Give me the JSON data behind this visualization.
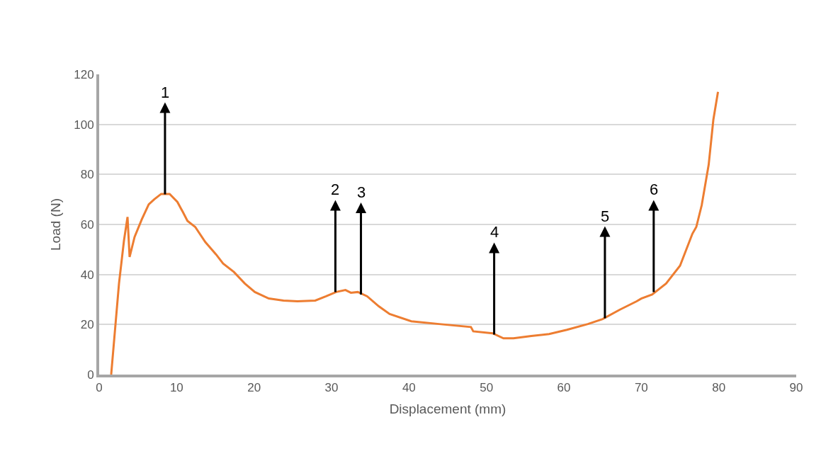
{
  "chart_data": {
    "type": "line",
    "xlabel": "Displacement (mm)",
    "ylabel": "Load (N)",
    "xlim": [
      0,
      90
    ],
    "xticks": [
      0,
      10,
      20,
      30,
      40,
      50,
      60,
      70,
      80,
      90
    ],
    "ylim": [
      0,
      120
    ],
    "yticks": [
      0,
      20,
      40,
      60,
      80,
      100,
      120
    ],
    "grid": "y",
    "marker": "none",
    "line_style": "solid",
    "series": [
      {
        "color": "#ed7d31",
        "x": [
          1.55,
          2.56,
          3.2,
          3.66,
          3.93,
          4.57,
          5.5,
          6.4,
          7.1,
          8.0,
          9.1,
          10.1,
          10.8,
          11.4,
          12.4,
          13.7,
          15.1,
          16,
          17.4,
          18.8,
          20.1,
          21.9,
          23.8,
          25.6,
          27.9,
          29.3,
          30.6,
          31.8,
          32.5,
          33.4,
          34.6,
          36.1,
          37.5,
          40.3,
          43.9,
          48,
          48.3,
          50.8,
          52.2,
          53.5,
          55.8,
          58.1,
          60.4,
          63.1,
          65,
          67.2,
          69.4,
          70,
          71.4,
          73.2,
          75,
          76.6,
          77.1,
          77.8,
          78.7,
          79.3,
          79.9
        ],
        "values": [
          0,
          36.4,
          53.5,
          63,
          47,
          55,
          62,
          68,
          70,
          72.2,
          72.2,
          69,
          65,
          61.4,
          59,
          53,
          48,
          44.4,
          41,
          36.4,
          33,
          30.4,
          29.6,
          29.3,
          29.6,
          31.3,
          33,
          33.8,
          32.7,
          33,
          31.3,
          27.3,
          24.2,
          21.3,
          20.2,
          19,
          17.3,
          16.5,
          14.5,
          14.5,
          15.4,
          16.2,
          17.9,
          20.2,
          22.2,
          25.9,
          29.3,
          30.4,
          32,
          36.4,
          43.5,
          56.3,
          59,
          67.7,
          83.9,
          101.8,
          113
        ]
      }
    ],
    "annotations": [
      {
        "text": "1",
        "x": 8.5,
        "y": 72
      },
      {
        "text": "2",
        "x": 30.5,
        "y": 33
      },
      {
        "text": "3",
        "x": 33.8,
        "y": 32
      },
      {
        "text": "4",
        "x": 51,
        "y": 16
      },
      {
        "text": "5",
        "x": 65.3,
        "y": 22.5
      },
      {
        "text": "6",
        "x": 71.6,
        "y": 33
      }
    ]
  }
}
